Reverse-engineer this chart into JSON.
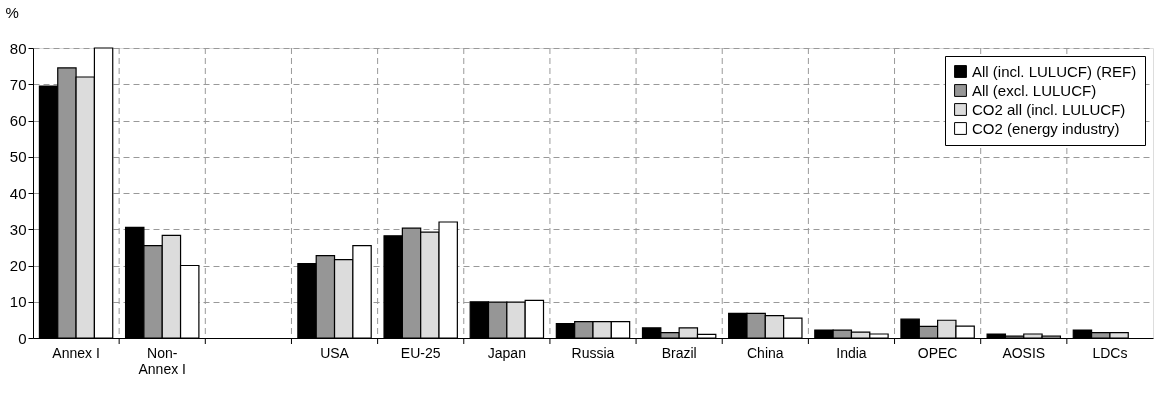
{
  "chart_data": {
    "type": "bar",
    "ylabel": "%",
    "categories": [
      "Annex I",
      "Non-Annex I",
      null,
      "USA",
      "EU-25",
      "Japan",
      "Russia",
      "Brazil",
      "China",
      "India",
      "OPEC",
      "AOSIS",
      "LDCs"
    ],
    "series": [
      {
        "name": "All (incl. LULUCF) (REF)",
        "color": "#000000",
        "values": [
          69.5,
          30.5,
          null,
          20.5,
          28.2,
          10,
          4,
          2.8,
          6.8,
          2.2,
          5.2,
          1.1,
          2.2
        ]
      },
      {
        "name": "All (excl. LULUCF)",
        "color": "#969696",
        "values": [
          74.5,
          25.5,
          null,
          22.7,
          30.3,
          9.9,
          4.5,
          1.5,
          6.8,
          2.2,
          3.2,
          0.5,
          1.5
        ]
      },
      {
        "name": "CO2 all (incl. LULUCF)",
        "color": "#dcdcdc",
        "values": [
          72,
          28.3,
          null,
          21.6,
          29.2,
          9.9,
          4.5,
          2.8,
          6.2,
          1.6,
          4.9,
          1.1,
          1.5
        ]
      },
      {
        "name": "CO2 (energy industry)",
        "color": "#ffffff",
        "values": [
          80,
          20,
          null,
          25.5,
          32,
          10.4,
          4.5,
          1,
          5.5,
          1.1,
          3.3,
          0.5,
          null
        ]
      }
    ],
    "ylim": [
      0,
      80
    ],
    "yticks": [
      0,
      10,
      20,
      30,
      40,
      50,
      60,
      70,
      80
    ],
    "grid": true,
    "legend": "top right"
  }
}
